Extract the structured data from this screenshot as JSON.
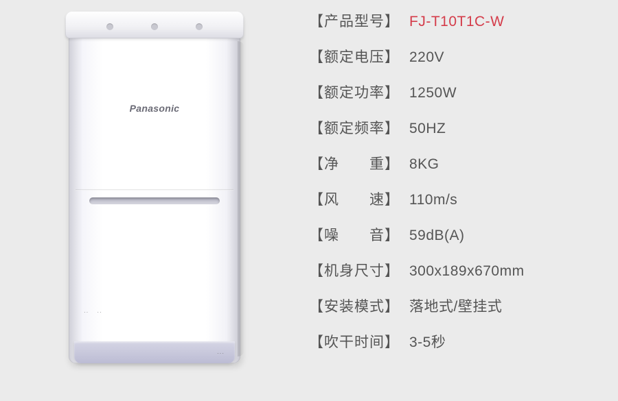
{
  "product": {
    "brand_text": "Panasonic"
  },
  "colors": {
    "background": "#ebebeb",
    "text": "#555555",
    "highlight": "#d43c4a"
  },
  "specs": [
    {
      "label": "【产品型号】",
      "value": "FJ-T10T1C-W",
      "highlight": true
    },
    {
      "label": "【额定电压】",
      "value": "220V",
      "highlight": false
    },
    {
      "label": "【额定功率】",
      "value": "1250W",
      "highlight": false
    },
    {
      "label": "【额定频率】",
      "value": "50HZ",
      "highlight": false
    },
    {
      "label": "【净　　重】",
      "value": "8KG",
      "highlight": false
    },
    {
      "label": "【风　　速】",
      "value": "110m/s",
      "highlight": false
    },
    {
      "label": "【噪　　音】",
      "value": "59dB(A)",
      "highlight": false
    },
    {
      "label": "【机身尺寸】",
      "value": "300x189x670mm",
      "highlight": false
    },
    {
      "label": "【安装模式】",
      "value": "落地式/壁挂式",
      "highlight": false
    },
    {
      "label": "【吹干时间】",
      "value": "3-5秒",
      "highlight": false
    }
  ]
}
